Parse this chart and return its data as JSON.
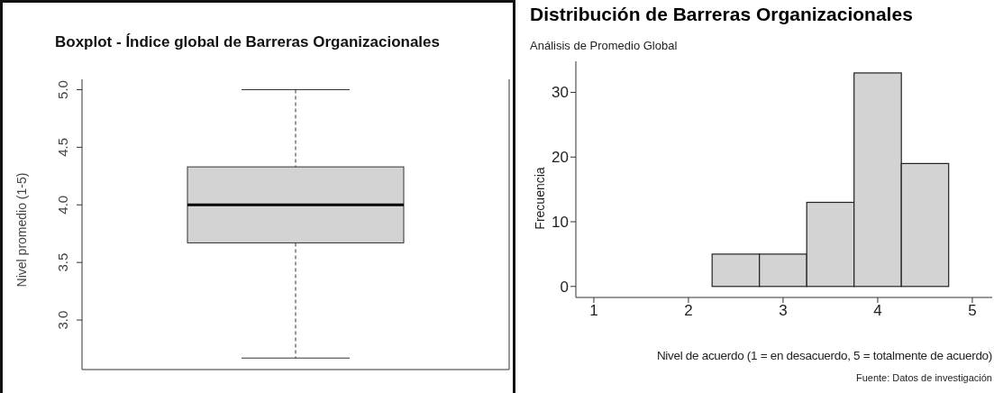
{
  "chart_data": [
    {
      "type": "box",
      "title": "Boxplot - Índice global de Barreras Organizacionales",
      "ylabel": "Nivel promedio (1-5)",
      "categories": [
        null
      ],
      "color": "#d3d3d3",
      "boxes": [
        {
          "low": 2.67,
          "q1": 3.67,
          "median": 4.0,
          "q3": 4.33,
          "high": 5.0
        }
      ],
      "ylim": [
        2.57,
        5.09
      ],
      "yticks": [
        {
          "value": 3,
          "label": "3.0"
        },
        {
          "value": 3.5,
          "label": "3.5"
        },
        {
          "value": 4,
          "label": "4.0"
        },
        {
          "value": 4.5,
          "label": "4.5"
        },
        {
          "value": 5,
          "label": "5.0"
        }
      ],
      "tick_labels": "y"
    },
    {
      "type": "histogram",
      "title": "Distribución de Barreras Organizacionales",
      "subtitle": "Análisis de Promedio Global",
      "xlabel": "Nivel de acuerdo (1 = en desacuerdo, 5 = totalmente de acuerdo)",
      "ylabel": "Frecuencia",
      "annotations": [
        "Fuente: Datos de investigación"
      ],
      "color": "#d3d3d3",
      "bins": [
        1.25,
        1.75,
        2.25,
        2.75,
        3.25,
        3.75,
        4.25,
        4.75
      ],
      "values": [
        0,
        0,
        5,
        5,
        13,
        33,
        19
      ],
      "xlim": [
        0.81,
        5.21
      ],
      "ylim": [
        -1.7,
        34.8
      ],
      "xticks": [
        1,
        2,
        3,
        4,
        5
      ],
      "yticks": [
        0,
        10,
        20,
        30
      ]
    }
  ]
}
